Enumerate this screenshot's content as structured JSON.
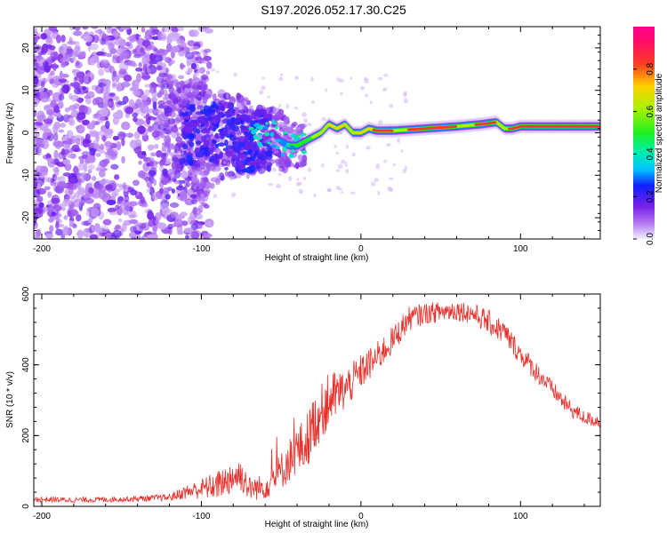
{
  "title": "S197.2026.052.17.30.C25",
  "chart_data": [
    {
      "type": "heatmap",
      "name": "spectrogram",
      "xlabel": "Height of straight line (km)",
      "ylabel": "Frequency (Hz)",
      "xlim": [
        -205,
        150
      ],
      "ylim": [
        -25,
        25
      ],
      "xticks": [
        -200,
        -100,
        0,
        100
      ],
      "xtick_labels": [
        "-200",
        "-100",
        "0",
        "100"
      ],
      "yticks": [
        -20,
        -10,
        0,
        10,
        20
      ],
      "ytick_labels": [
        "-20",
        "-10",
        "0",
        "10",
        "20"
      ],
      "ridge": {
        "x": [
          -60,
          -55,
          -50,
          -45,
          -40,
          -35,
          -30,
          -25,
          -20,
          -15,
          -10,
          -5,
          0,
          5,
          10,
          20,
          40,
          60,
          75,
          85,
          90,
          95,
          100,
          120,
          150
        ],
        "y": [
          -1,
          0,
          -2,
          -3,
          -3,
          -2,
          -1,
          0,
          2,
          1,
          2,
          0,
          0,
          1,
          0.5,
          0.5,
          1,
          1.5,
          2,
          2.5,
          1,
          1,
          1.5,
          1.5,
          1.5
        ]
      }
    },
    {
      "type": "line",
      "name": "snr",
      "xlabel": "Height of straight line (km)",
      "ylabel": "SNR (10 * v/v)",
      "xlim": [
        -205,
        150
      ],
      "ylim": [
        0,
        600
      ],
      "xticks": [
        -200,
        -100,
        0,
        100
      ],
      "xtick_labels": [
        "-200",
        "-100",
        "0",
        "100"
      ],
      "yticks": [
        0,
        200,
        400,
        600
      ],
      "ytick_labels": [
        "0",
        "200",
        "400",
        "600"
      ],
      "series": [
        {
          "name": "SNR",
          "color": "#e8302a",
          "x": [
            -205,
            -180,
            -150,
            -120,
            -110,
            -100,
            -90,
            -80,
            -75,
            -70,
            -60,
            -50,
            -40,
            -35,
            -30,
            -20,
            -10,
            0,
            10,
            20,
            30,
            40,
            50,
            60,
            70,
            80,
            90,
            100,
            110,
            120,
            130,
            140,
            150
          ],
          "values": [
            20,
            18,
            20,
            25,
            40,
            50,
            60,
            85,
            90,
            50,
            55,
            100,
            160,
            170,
            230,
            300,
            330,
            380,
            420,
            470,
            530,
            545,
            550,
            555,
            545,
            520,
            490,
            430,
            380,
            330,
            280,
            250,
            240
          ],
          "noise": [
            8,
            8,
            8,
            10,
            20,
            30,
            40,
            50,
            50,
            35,
            35,
            55,
            70,
            80,
            80,
            80,
            60,
            50,
            45,
            40,
            35,
            30,
            30,
            30,
            30,
            35,
            35,
            30,
            30,
            25,
            25,
            20,
            20
          ]
        }
      ]
    }
  ],
  "colorbar": {
    "label": "Normalized spectral amplitude",
    "ticks": [
      0.0,
      0.2,
      0.4,
      0.6,
      0.8
    ],
    "tick_labels": [
      "0.0",
      "0.2",
      "0.4",
      "0.6",
      "0.8"
    ],
    "range": [
      0,
      1
    ],
    "stops": [
      {
        "v": 0.0,
        "color": "#f0f0ff"
      },
      {
        "v": 0.07,
        "color": "#b77ff2"
      },
      {
        "v": 0.15,
        "color": "#7a22e8"
      },
      {
        "v": 0.25,
        "color": "#1020ff"
      },
      {
        "v": 0.33,
        "color": "#00c8ff"
      },
      {
        "v": 0.42,
        "color": "#00f0a0"
      },
      {
        "v": 0.5,
        "color": "#20f020"
      },
      {
        "v": 0.62,
        "color": "#b0f000"
      },
      {
        "v": 0.72,
        "color": "#ffd000"
      },
      {
        "v": 0.82,
        "color": "#ff4020"
      },
      {
        "v": 0.92,
        "color": "#ff1060"
      },
      {
        "v": 1.0,
        "color": "#ff0090"
      }
    ]
  }
}
